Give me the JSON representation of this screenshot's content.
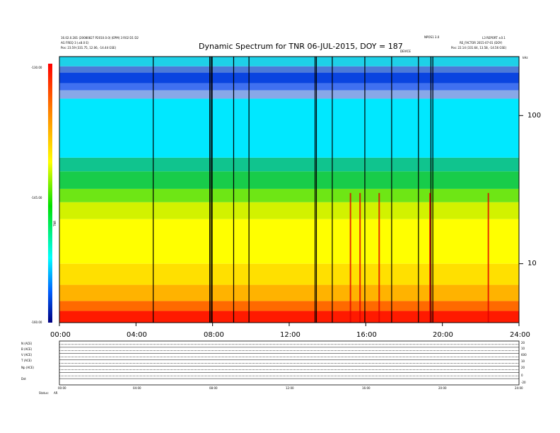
{
  "header": {
    "left_line1": "16.02.0.281 (20080827 P2010.0.0) (EPM) 3 R02 D1 D2",
    "left_line2": "AG FREQ 3 (±8.0 E)",
    "left_line3": "Pos:    23.59 (331.75, 12.06, -14.44 GSE)",
    "right_line1": "L3 REPORT ±0.1",
    "right_line1b": "NPOS1 3.0",
    "right_line2": "RE_FACTOR 2015-07-01 (DOY)",
    "right_line3": "Pos:    22.14 (331.64, 13.58, -14.56 GSE)",
    "marker_label": "DEVICE",
    "corner_label": "kHz"
  },
  "chart_data": {
    "type": "heatmap",
    "title": "Dynamic Spectrum for TNR 06-JUL-2015, DOY = 187",
    "x_ticks": [
      "00:00",
      "04:00",
      "08:00",
      "12:00",
      "16:00",
      "20:00",
      "24:00"
    ],
    "x_range_hours": [
      0,
      24
    ],
    "y_ticks": [
      "100",
      "10"
    ],
    "y_scale": "log",
    "y_range": [
      4,
      250
    ],
    "colorbar": {
      "ticks": [
        "-130.00",
        "-145.00",
        "-160.00"
      ],
      "label": "TNR",
      "range": [
        -160,
        -130
      ]
    },
    "band_profile": [
      {
        "y_from": 4.0,
        "y_to": 4.8,
        "level": -130,
        "color": "#ff1a00"
      },
      {
        "y_from": 4.8,
        "y_to": 5.6,
        "level": -133,
        "color": "#ff6a00"
      },
      {
        "y_from": 5.6,
        "y_to": 7.2,
        "level": -136,
        "color": "#ffb300"
      },
      {
        "y_from": 7.2,
        "y_to": 10,
        "level": -138,
        "color": "#ffe000"
      },
      {
        "y_from": 10,
        "y_to": 20,
        "level": -140,
        "color": "#ffff00"
      },
      {
        "y_from": 20,
        "y_to": 26,
        "level": -143,
        "color": "#d2f200"
      },
      {
        "y_from": 26,
        "y_to": 32,
        "level": -146,
        "color": "#6ee615"
      },
      {
        "y_from": 32,
        "y_to": 42,
        "level": -148,
        "color": "#18cc4a"
      },
      {
        "y_from": 42,
        "y_to": 52,
        "level": -150,
        "color": "#10c48e"
      },
      {
        "y_from": 52,
        "y_to": 130,
        "level": -152,
        "color": "#00e8ff"
      },
      {
        "y_from": 130,
        "y_to": 148,
        "level": -154,
        "color": "#88a8e8"
      },
      {
        "y_from": 148,
        "y_to": 165,
        "level": -156,
        "color": "#4070f0"
      },
      {
        "y_from": 165,
        "y_to": 195,
        "level": -158,
        "color": "#0a44e0"
      },
      {
        "y_from": 195,
        "y_to": 215,
        "level": -156,
        "color": "#4c7ad8"
      },
      {
        "y_from": 215,
        "y_to": 250,
        "level": -154,
        "color": "#1ed0e8"
      }
    ],
    "data_gaps_hours": [
      4.9,
      7.85,
      7.92,
      7.98,
      9.1,
      9.9,
      13.35,
      13.42,
      14.25,
      15.95,
      17.35,
      18.75,
      19.4,
      19.5
    ],
    "bursts_hours": [
      15.2,
      15.7,
      16.7,
      19.35,
      22.4
    ]
  },
  "panels": {
    "rows": [
      {
        "label": "N (ACE)",
        "right": "20"
      },
      {
        "label": "B (ACE)",
        "right": "10"
      },
      {
        "label": "V (ACE)",
        "right": "600"
      },
      {
        "label": "T (ACE)",
        "right": "10"
      },
      {
        "label": "Np (ACE)",
        "right": "20"
      },
      {
        "label": "Dst",
        "right": "0"
      },
      {
        "label": "",
        "right": "-20"
      }
    ],
    "x_ticks": [
      "00:00",
      "04:00",
      "08:00",
      "12:00",
      "16:00",
      "20:00",
      "24:00"
    ],
    "status_label": "Status:",
    "status_value": "AR"
  }
}
